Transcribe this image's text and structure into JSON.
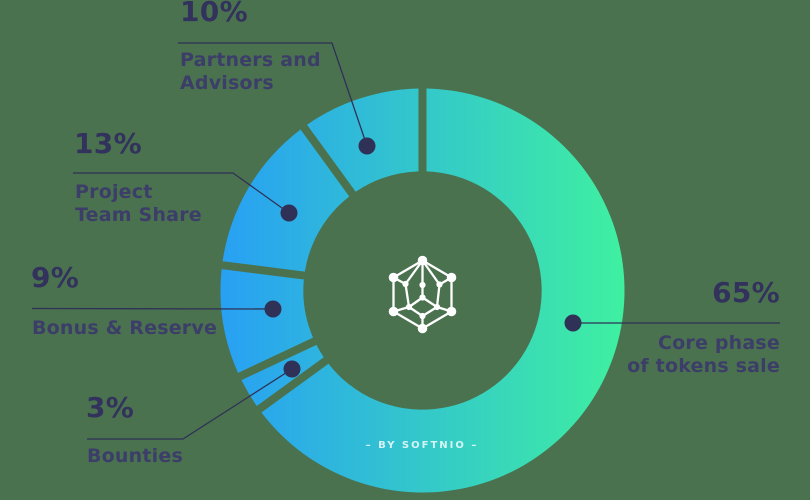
{
  "page": {
    "background": "#4a724f"
  },
  "chart_data": {
    "type": "donut",
    "unit": "%",
    "direction": "clockwise",
    "start_angle_deg": 0,
    "inner_radius_ratio": 0.59,
    "segments": [
      {
        "id": "core",
        "label": "Core phase of tokens sale",
        "value": 65
      },
      {
        "id": "bounties",
        "label": "Bounties",
        "value": 3
      },
      {
        "id": "bonus",
        "label": "Bonus & Reserve",
        "value": 9
      },
      {
        "id": "team",
        "label": "Project Team Share",
        "value": 13
      },
      {
        "id": "partners",
        "label": "Partners and Advisors",
        "value": 10
      }
    ],
    "gradient": {
      "from": "#28a0f4",
      "to": "#3ff0a0"
    },
    "watermark": "– BY SOFTNIO –",
    "center_icon": "hexagon-network-logo",
    "legend_position": "callouts-around-chart"
  },
  "callouts": {
    "partners": {
      "pct": "10%",
      "lines": [
        "Partners and",
        "Advisors"
      ]
    },
    "team": {
      "pct": "13%",
      "lines": [
        "Project",
        "Team Share"
      ]
    },
    "bonus": {
      "pct": "9%",
      "lines": [
        "Bonus & Reserve"
      ]
    },
    "bounties": {
      "pct": "3%",
      "lines": [
        "Bounties"
      ]
    },
    "core": {
      "pct": "65%",
      "lines": [
        "Core phase",
        "of tokens sale"
      ]
    }
  },
  "colors": {
    "percent_text": "#32325c",
    "label_text": "#3c3e69",
    "leader_line": "#2f3156",
    "logo": "#ffffff",
    "watermark": "rgba(255,255,255,0.8)"
  }
}
